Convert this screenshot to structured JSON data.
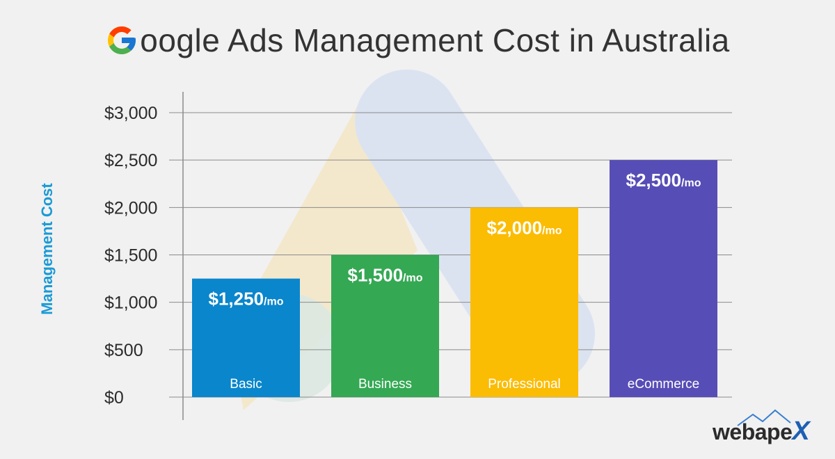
{
  "header": {
    "title_rest": "oogle Ads Management Cost in Australia",
    "logo_icon": "google-g-icon"
  },
  "brand": {
    "name_main": "webape",
    "name_x": "X",
    "icon": "mountain-peaks-icon"
  },
  "colors": {
    "background": "#f1f1f1",
    "axis_label": "#1a9ad6",
    "gridline": "#8a8a8a",
    "watermark_yellow": "#f2e6c8",
    "watermark_blue": "#dbe3f1",
    "watermark_green": "#dce8e1"
  },
  "chart_data": {
    "type": "bar",
    "categories": [
      "Basic",
      "Business",
      "Professional",
      "eCommerce"
    ],
    "values": [
      1250,
      1500,
      2000,
      2500
    ],
    "value_labels": [
      "$1,250",
      "$1,500",
      "$2,000",
      "$2,500"
    ],
    "value_suffix": "/mo",
    "colors": [
      "#0a86cc",
      "#34a853",
      "#fbbc04",
      "#574db6"
    ],
    "ylabel": "Management Cost",
    "xlabel": "",
    "ylim": [
      0,
      3000
    ],
    "yticks": [
      0,
      500,
      1000,
      1500,
      2000,
      2500,
      3000
    ],
    "ytick_labels": [
      "$0",
      "$500",
      "$1,000",
      "$1,500",
      "$2,000",
      "$2,500",
      "$3,000"
    ],
    "grid": true,
    "background_watermark": "google-ads-logo"
  }
}
